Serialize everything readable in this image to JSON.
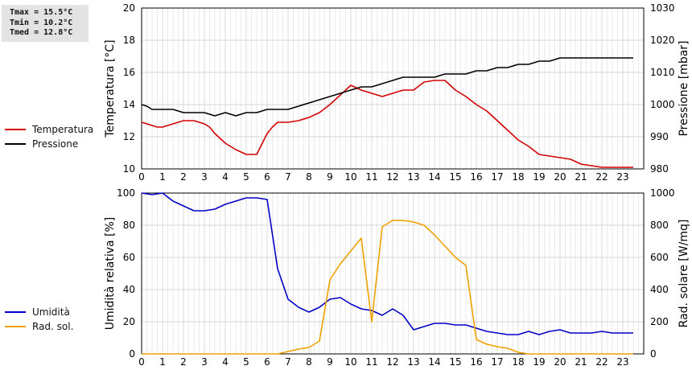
{
  "stats": {
    "tmax": "Tmax = 15.5°C",
    "tmin": "Tmin = 10.2°C",
    "tmed": "Tmed = 12.8°C"
  },
  "colors": {
    "temp": "#d40000",
    "press": "#000000",
    "hum": "#0000c8",
    "rad": "#f0a000",
    "grid": "#d6d6d6"
  },
  "chart_data": [
    {
      "type": "line",
      "title": "",
      "xlabel": "",
      "ylabel": "Temperatura [°C]",
      "y2label": "Pressione [mbar]",
      "xlim": [
        0,
        24
      ],
      "ylim": [
        10,
        20
      ],
      "y2lim": [
        980,
        1030
      ],
      "xticks": [
        0,
        1,
        2,
        3,
        4,
        5,
        6,
        7,
        8,
        9,
        10,
        11,
        12,
        13,
        14,
        15,
        16,
        17,
        18,
        19,
        20,
        21,
        22,
        23
      ],
      "yticks": [
        10,
        12,
        14,
        16,
        18,
        20
      ],
      "y2ticks": [
        980,
        990,
        1000,
        1010,
        1020,
        1030
      ],
      "grid": true,
      "legend_position": "left",
      "series": [
        {
          "name": "Temperatura",
          "axis": "left",
          "x": [
            0,
            0.25,
            0.5,
            0.75,
            1,
            1.5,
            2,
            2.5,
            3,
            3.25,
            3.5,
            4,
            4.5,
            5,
            5.5,
            6,
            6.25,
            6.5,
            6.75,
            7,
            7.5,
            8,
            8.5,
            9,
            9.5,
            10,
            10.5,
            10.75,
            11,
            11.5,
            12,
            12.5,
            13,
            13.5,
            14,
            14.5,
            15,
            15.5,
            16,
            16.5,
            17,
            17.5,
            18,
            18.5,
            19,
            19.5,
            20,
            20.5,
            21,
            21.5,
            22,
            22.5,
            23,
            23.5
          ],
          "values": [
            12.9,
            12.8,
            12.7,
            12.6,
            12.6,
            12.8,
            13.0,
            13.0,
            12.8,
            12.6,
            12.2,
            11.6,
            11.2,
            10.9,
            10.9,
            12.2,
            12.6,
            12.9,
            12.9,
            12.9,
            13.0,
            13.2,
            13.5,
            14.0,
            14.6,
            15.2,
            14.9,
            14.8,
            14.7,
            14.5,
            14.7,
            14.9,
            14.9,
            15.4,
            15.5,
            15.5,
            14.9,
            14.5,
            14.0,
            13.6,
            13.0,
            12.4,
            11.8,
            11.4,
            10.9,
            10.8,
            10.7,
            10.6,
            10.3,
            10.2,
            10.1,
            10.1,
            10.1,
            10.1
          ]
        },
        {
          "name": "Pressione",
          "axis": "right",
          "x": [
            0,
            0.25,
            0.5,
            1,
            1.5,
            2,
            2.5,
            3,
            3.5,
            4,
            4.5,
            5,
            5.5,
            6,
            6.5,
            7,
            7.5,
            8,
            8.5,
            9,
            9.5,
            10,
            10.5,
            11,
            11.5,
            12,
            12.5,
            13,
            13.5,
            14,
            14.5,
            15,
            15.5,
            16,
            16.5,
            17,
            17.5,
            18,
            18.5,
            19,
            19.5,
            20,
            20.5,
            21,
            21.5,
            22,
            22.5,
            23,
            23.5
          ],
          "values": [
            1000,
            999.5,
            998.5,
            998.5,
            998.5,
            997.5,
            997.5,
            997.5,
            996.5,
            997.5,
            996.5,
            997.5,
            997.5,
            998.5,
            998.5,
            998.5,
            999.5,
            1000.5,
            1001.5,
            1002.5,
            1003.5,
            1004.5,
            1005.5,
            1005.5,
            1006.5,
            1007.5,
            1008.5,
            1008.5,
            1008.5,
            1008.5,
            1009.5,
            1009.5,
            1009.5,
            1010.5,
            1010.5,
            1011.5,
            1011.5,
            1012.5,
            1012.5,
            1013.5,
            1013.5,
            1014.5,
            1014.5,
            1014.5,
            1014.5,
            1014.5,
            1014.5,
            1014.5,
            1014.5
          ]
        }
      ]
    },
    {
      "type": "line",
      "title": "",
      "xlabel": "",
      "ylabel": "Umidità relativa [%]",
      "y2label": "Rad. solare [W/mq]",
      "xlim": [
        0,
        24
      ],
      "ylim": [
        0,
        100
      ],
      "y2lim": [
        0,
        1000
      ],
      "xticks": [
        0,
        1,
        2,
        3,
        4,
        5,
        6,
        7,
        8,
        9,
        10,
        11,
        12,
        13,
        14,
        15,
        16,
        17,
        18,
        19,
        20,
        21,
        22,
        23
      ],
      "yticks": [
        0,
        20,
        40,
        60,
        80,
        100
      ],
      "y2ticks": [
        0,
        200,
        400,
        600,
        800,
        1000
      ],
      "grid": true,
      "legend_position": "left",
      "series": [
        {
          "name": "Umidità",
          "axis": "left",
          "x": [
            0,
            0.5,
            1,
            1.5,
            2,
            2.5,
            3,
            3.5,
            4,
            4.5,
            5,
            5.5,
            6,
            6.5,
            7,
            7.5,
            8,
            8.5,
            9,
            9.5,
            10,
            10.5,
            11,
            11.5,
            12,
            12.5,
            13,
            13.5,
            14,
            14.5,
            15,
            15.5,
            16,
            16.5,
            17,
            17.5,
            18,
            18.5,
            19,
            19.5,
            20,
            20.5,
            21,
            21.5,
            22,
            22.5,
            23,
            23.5
          ],
          "values": [
            100,
            99,
            100,
            95,
            92,
            89,
            89,
            90,
            93,
            95,
            97,
            97,
            96,
            53,
            34,
            29,
            26,
            29,
            34,
            35,
            31,
            28,
            27,
            24,
            28,
            24,
            15,
            17,
            19,
            19,
            18,
            18,
            16,
            14,
            13,
            12,
            12,
            14,
            12,
            14,
            15,
            13,
            13,
            13,
            14,
            13,
            13,
            13
          ]
        },
        {
          "name": "Rad. sol.",
          "axis": "right",
          "x": [
            0,
            1,
            2,
            3,
            4,
            5,
            6,
            6.5,
            7,
            7.5,
            8,
            8.5,
            9,
            9.5,
            10,
            10.5,
            11,
            11.5,
            12,
            12.5,
            13,
            13.5,
            14,
            14.5,
            15,
            15.5,
            16,
            16.5,
            17,
            17.5,
            18,
            18.5,
            19,
            20,
            21,
            22,
            23,
            23.5
          ],
          "values": [
            0,
            0,
            0,
            0,
            0,
            0,
            0,
            0,
            15,
            30,
            40,
            80,
            460,
            560,
            640,
            720,
            200,
            790,
            830,
            830,
            820,
            800,
            740,
            670,
            600,
            550,
            90,
            60,
            45,
            35,
            10,
            0,
            0,
            0,
            0,
            0,
            0,
            0
          ]
        }
      ]
    }
  ]
}
